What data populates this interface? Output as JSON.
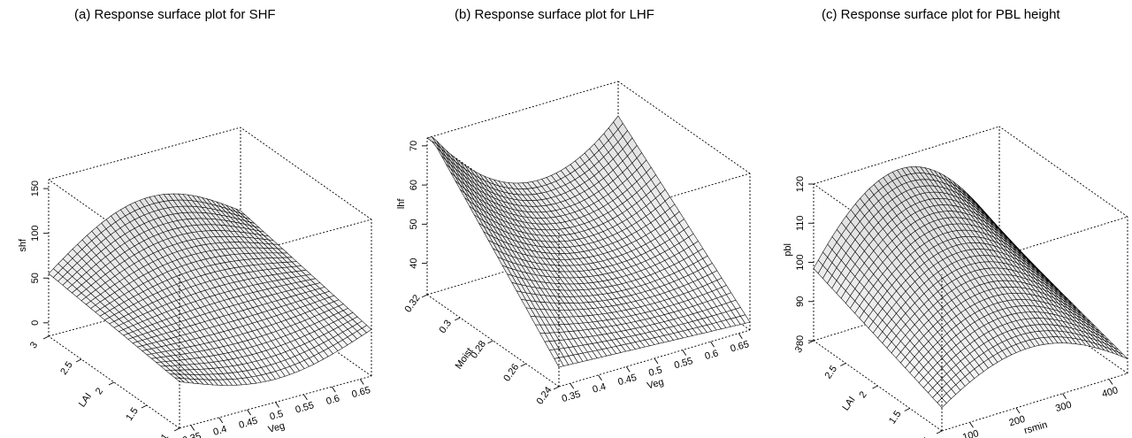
{
  "chart_data": [
    {
      "type": "surface",
      "title": "(a) Response surface plot for SHF",
      "x": {
        "label": "Veg",
        "range": [
          0.33,
          0.67
        ],
        "ticks": [
          "0.35",
          "0.4",
          "0.45",
          "0.5",
          "0.55",
          "0.6",
          "0.65"
        ]
      },
      "y": {
        "label": "LAI",
        "range": [
          1,
          3
        ],
        "ticks": [
          "1",
          "1.5",
          "2",
          "2.5",
          "3"
        ]
      },
      "z": {
        "label": "shf",
        "range": [
          -15,
          160
        ],
        "ticks": [
          "0",
          "50",
          "100",
          "150"
        ]
      },
      "corner_values": {
        "veg_min_lai_max": 55,
        "veg_max_lai_max": 55,
        "veg_min_lai_min": 20,
        "peak": 150
      },
      "grid": {
        "nx": 40,
        "ny": 28
      }
    },
    {
      "type": "surface",
      "title": "(b) Response surface plot for LHF",
      "x": {
        "label": "Veg",
        "range": [
          0.33,
          0.67
        ],
        "ticks": [
          "0.35",
          "0.4",
          "0.45",
          "0.5",
          "0.55",
          "0.6",
          "0.65"
        ]
      },
      "y": {
        "label": "Moist",
        "range": [
          0.24,
          0.32
        ],
        "ticks": [
          "0.24",
          "0.26",
          "0.28",
          "0.3",
          "0.32"
        ]
      },
      "z": {
        "label": "lhf",
        "range": [
          32,
          72
        ],
        "ticks": [
          "40",
          "50",
          "60",
          "70"
        ]
      },
      "corner_values": {
        "veg_min_moist_max": 70,
        "veg_max_moist_max": 62,
        "min": 34
      },
      "grid": {
        "nx": 40,
        "ny": 28
      }
    },
    {
      "type": "surface",
      "title": "(c) Response surface plot for PBL height",
      "x": {
        "label": "rsmin",
        "range": [
          40,
          440
        ],
        "ticks": [
          "100",
          "200",
          "300",
          "400"
        ]
      },
      "y": {
        "label": "LAI",
        "range": [
          1,
          3
        ],
        "ticks": [
          "1",
          "1.5",
          "2",
          "2.5",
          "3"
        ]
      },
      "z": {
        "label": "pbl",
        "range": [
          80,
          120
        ],
        "ticks": [
          "80",
          "90",
          "100",
          "110",
          "120"
        ]
      },
      "corner_values": {
        "rsmin_min_lai_max": 88,
        "peak": 119,
        "rsmin_max_lai_max": 85
      },
      "grid": {
        "nx": 40,
        "ny": 28
      }
    }
  ]
}
